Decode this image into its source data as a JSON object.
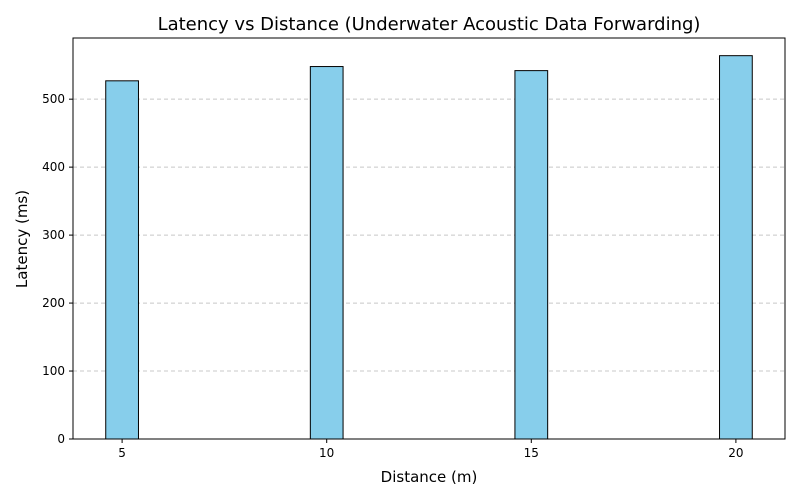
{
  "chart_data": {
    "type": "bar",
    "title": "Latency vs Distance (Underwater Acoustic Data Forwarding)",
    "xlabel": "Distance (m)",
    "ylabel": "Latency (ms)",
    "x": [
      5,
      10,
      15,
      20
    ],
    "values": [
      527,
      548,
      542,
      564
    ],
    "x_ticks": [
      "5",
      "10",
      "15",
      "20"
    ],
    "y_ticks": [
      0,
      100,
      200,
      300,
      400,
      500
    ],
    "xlim": [
      3.8,
      21.2
    ],
    "ylim": [
      0,
      590
    ],
    "bar_width": 0.8,
    "grid": "y-dashed",
    "bar_color": "#87CEEB",
    "bar_edge_color": "#000000",
    "grid_color": "#c8c8c8"
  }
}
